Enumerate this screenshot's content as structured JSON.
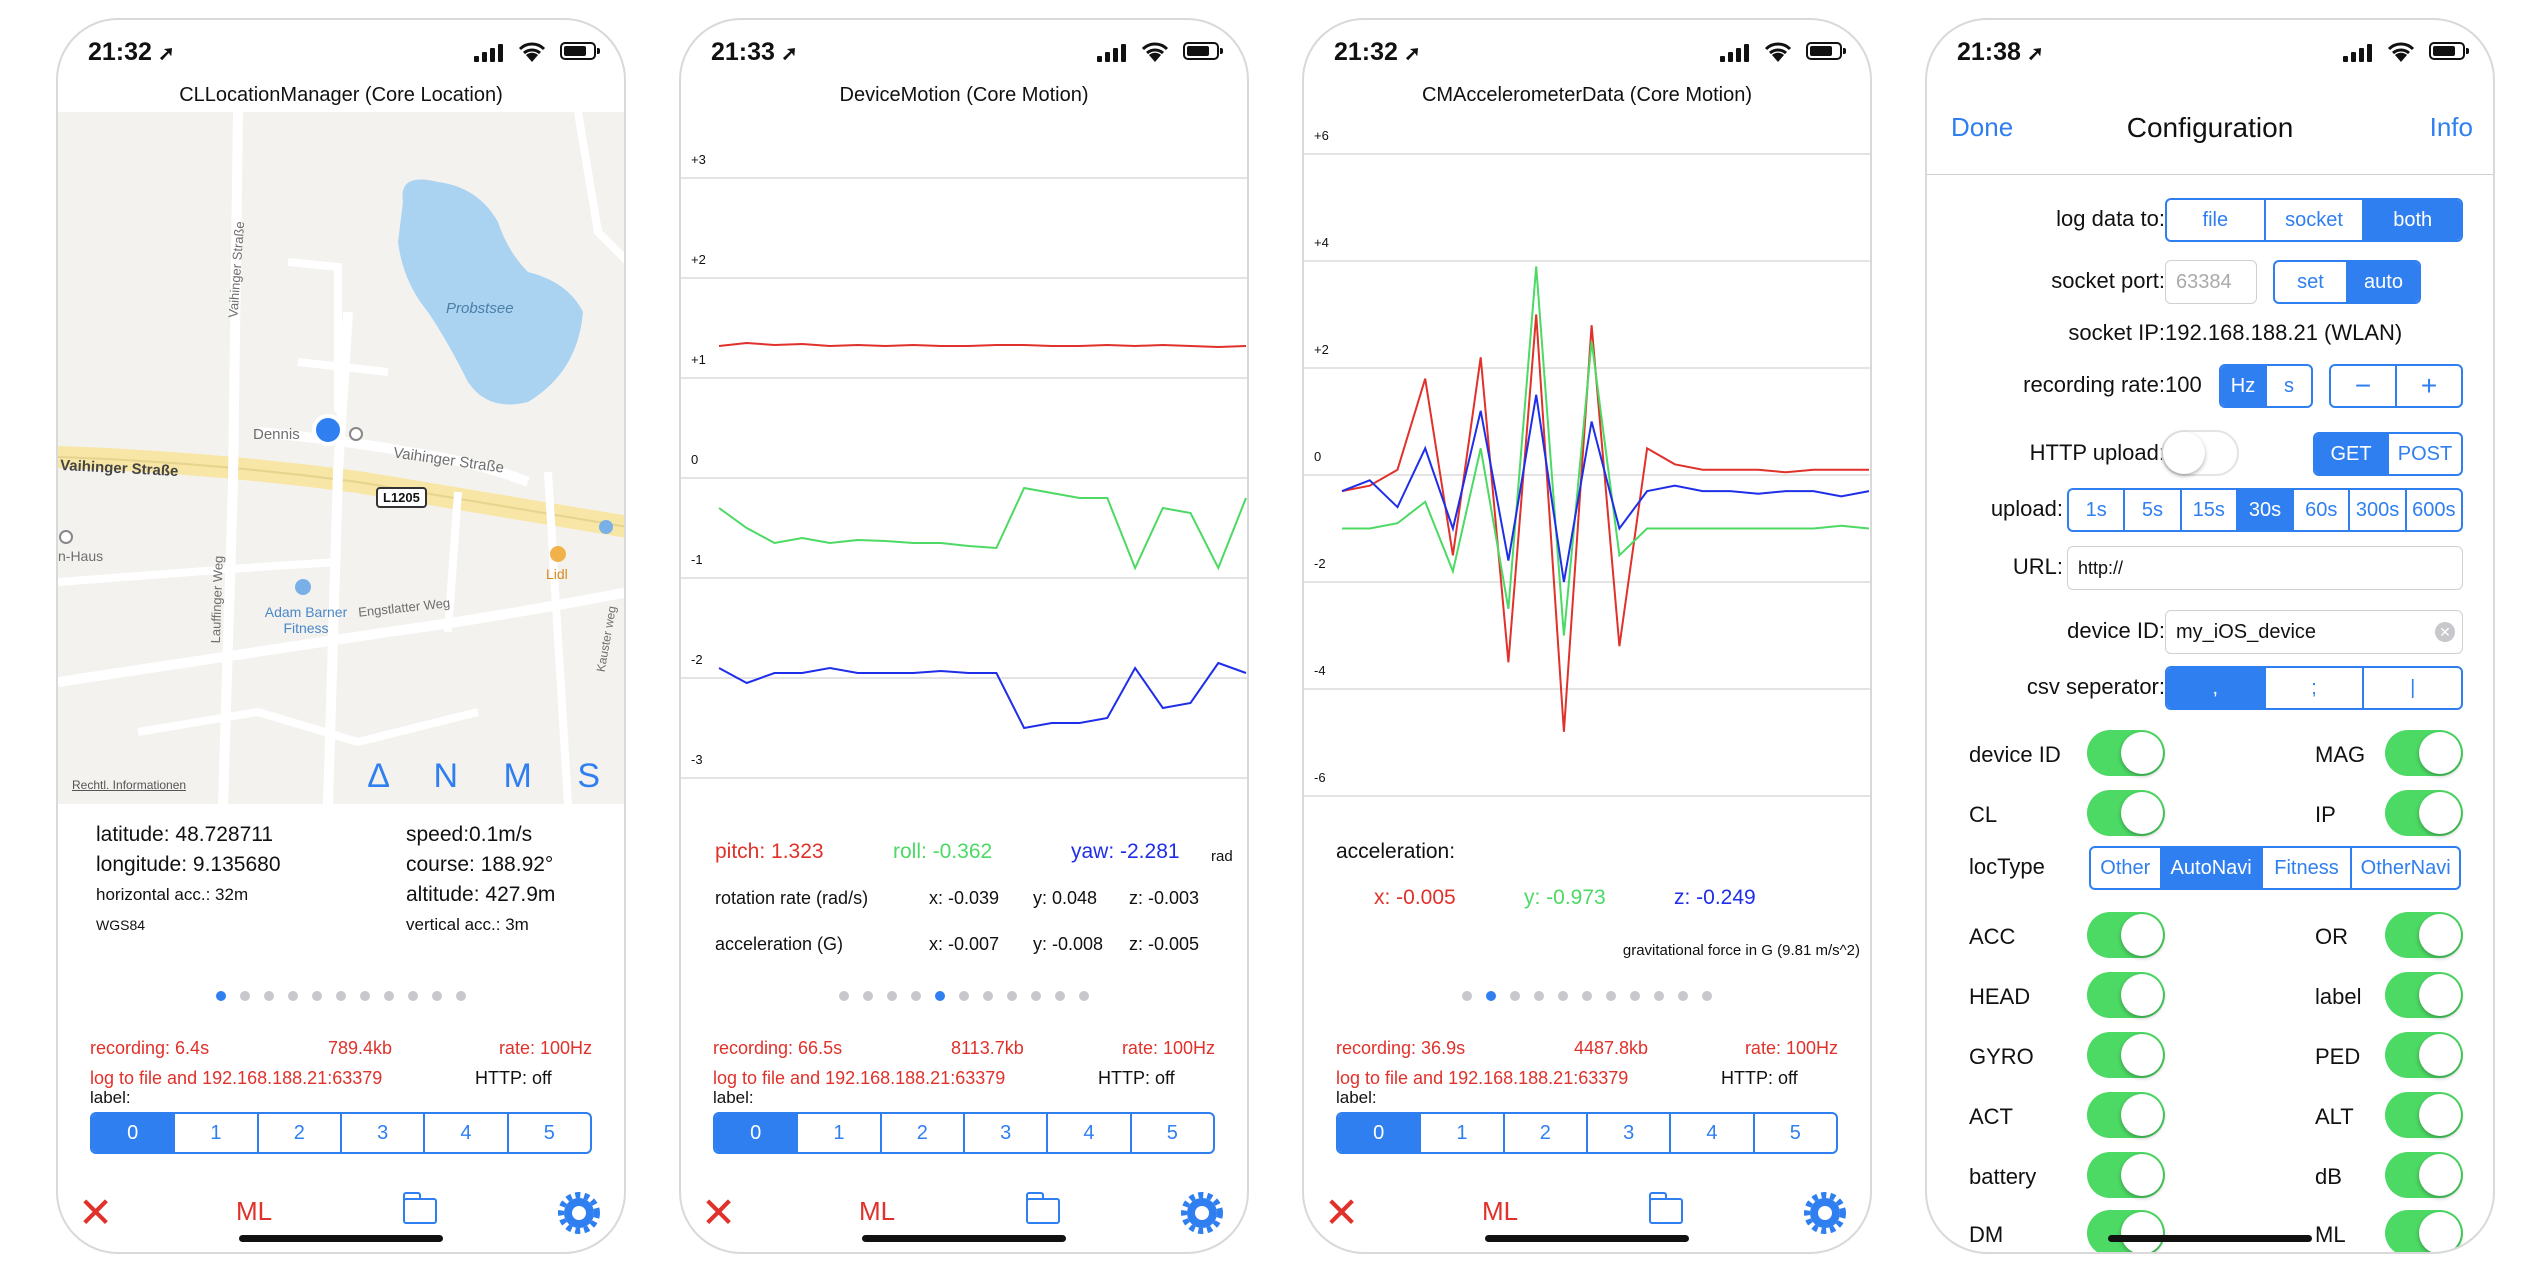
{
  "screens": [
    {
      "time": "21:32",
      "title": "CLLocationManager (Core Location)",
      "map": {
        "labels": [
          "Probstsee",
          "Vaihinger Straße",
          "Vaihinger Straße",
          "Dennis",
          "L1205",
          "Lauffinger Weg",
          "Vaihinger Straße",
          "Adam Barner Fitness",
          "Engstlatter Weg",
          "Lidl",
          "n-Haus",
          "Kauster weg"
        ],
        "legal": "Rechtl. Informationen",
        "buttons": "Δ N M S"
      },
      "info": {
        "latitude": "latitude: 48.728711",
        "longitude": "longitude: 9.135680",
        "horizontal_acc": "horizontal acc.: 32m",
        "datum": "WGS84",
        "speed": "speed:0.1m/s",
        "course": "course: 188.92°",
        "altitude": "altitude: 427.9m",
        "vertical_acc": "vertical acc.: 3m"
      },
      "page_dots": 11,
      "active_dot": 0,
      "recording": "recording:  6.4s",
      "size": "789.4kb",
      "rate": "rate: 100Hz",
      "log": "log to file and 192.168.188.21:63379",
      "http": "HTTP:  off"
    },
    {
      "time": "21:33",
      "title": "DeviceMotion (Core Motion)",
      "pitch": "pitch: 1.323",
      "roll": "roll: -0.362",
      "yaw": "yaw: -2.281",
      "unit": "rad",
      "rot_label": "rotation rate (rad/s)",
      "rot": [
        "x: -0.039",
        "y: 0.048",
        "z: -0.003"
      ],
      "acc_label": "acceleration (G)",
      "acc": [
        "x: -0.007",
        "y: -0.008",
        "z: -0.005"
      ],
      "page_dots": 11,
      "active_dot": 4,
      "recording": "recording:  66.5s",
      "size": "8113.7kb",
      "rate": "rate: 100Hz",
      "log": "log to file and 192.168.188.21:63379",
      "http": "HTTP:  off"
    },
    {
      "time": "21:32",
      "title": "CMAccelerometerData (Core Motion)",
      "acc_label": "acceleration:",
      "x": "x: -0.005",
      "y": "y: -0.973",
      "z": "z: -0.249",
      "grav": "gravitational force in G (9.81 m/s^2)",
      "page_dots": 11,
      "active_dot": 1,
      "recording": "recording:  36.9s",
      "size": "4487.8kb",
      "rate": "rate: 100Hz",
      "log": "log to file and 192.168.188.21:63379",
      "http": "HTTP:  off"
    },
    {
      "time": "21:38",
      "done": "Done",
      "title": "Configuration",
      "info": "Info",
      "log_label": "log data to:",
      "log_opts": [
        "file",
        "socket",
        "both"
      ],
      "port_label": "socket port:",
      "port_value": "63384",
      "port_opts": [
        "set",
        "auto"
      ],
      "ip_label": "socket IP:",
      "ip_value": "192.168.188.21 (WLAN)",
      "rate_label": "recording rate:",
      "rate_value": "100",
      "rate_units": [
        "Hz",
        "s"
      ],
      "stepper": [
        "−",
        "+"
      ],
      "http_label": "HTTP upload:",
      "http_opts": [
        "GET",
        "POST"
      ],
      "upload_label": "upload:",
      "upload_opts": [
        "1s",
        "5s",
        "15s",
        "30s",
        "60s",
        "300s",
        "600s"
      ],
      "url_label": "URL:",
      "url_value": "http://",
      "device_label": "device ID:",
      "device_value": "my_iOS_device",
      "csv_label": "csv seperator:",
      "csv_opts": [
        ",",
        ";",
        "|"
      ],
      "loctype_label": "locType",
      "loctype_opts": [
        "Other",
        "AutoNavi",
        "Fitness",
        "OtherNavi"
      ],
      "toggles_left": [
        "device ID",
        "CL",
        "ACC",
        "HEAD",
        "GYRO",
        "ACT",
        "battery",
        "DM"
      ],
      "toggles_right": [
        "MAG",
        "IP",
        "OR",
        "label",
        "PED",
        "ALT",
        "dB",
        "ML"
      ]
    }
  ],
  "labels_row": {
    "label": "label:",
    "options": [
      "0",
      "1",
      "2",
      "3",
      "4",
      "5"
    ]
  },
  "tabbar": {
    "close": "✕",
    "ml": "ML"
  },
  "chart_data": [
    {
      "type": "line",
      "title": "DeviceMotion (Core Motion)",
      "ylim": [
        -3,
        3
      ],
      "yticks": [
        "+3",
        "+2",
        "+1",
        "0",
        "-1",
        "-2",
        "-3"
      ],
      "series": [
        {
          "color": "#e0312a",
          "values": [
            1.32,
            1.35,
            1.33,
            1.34,
            1.32,
            1.33,
            1.32,
            1.33,
            1.32,
            1.32,
            1.33,
            1.33,
            1.32,
            1.32,
            1.33,
            1.32,
            1.33,
            1.32,
            1.31,
            1.32
          ]
        },
        {
          "color": "#4cd964",
          "values": [
            -0.3,
            -0.5,
            -0.65,
            -0.6,
            -0.65,
            -0.62,
            -0.63,
            -0.65,
            -0.65,
            -0.68,
            -0.7,
            -0.1,
            -0.15,
            -0.2,
            -0.2,
            -0.9,
            -0.3,
            -0.35,
            -0.9,
            -0.2
          ]
        },
        {
          "color": "#1f2ee8",
          "values": [
            -1.9,
            -2.05,
            -1.95,
            -1.95,
            -1.9,
            -1.95,
            -1.95,
            -1.95,
            -1.93,
            -1.95,
            -1.95,
            -2.5,
            -2.45,
            -2.45,
            -2.4,
            -1.9,
            -2.3,
            -2.25,
            -1.85,
            -1.95
          ]
        }
      ]
    },
    {
      "type": "line",
      "title": "CMAccelerometerData (Core Motion)",
      "ylim": [
        -6,
        6
      ],
      "yticks": [
        "+6",
        "+4",
        "+2",
        "0",
        "-2",
        "-4",
        "-6"
      ],
      "series": [
        {
          "color": "#e0312a",
          "values": [
            -0.3,
            -0.2,
            0.1,
            1.8,
            -1.5,
            2.2,
            -3.5,
            3.0,
            -4.8,
            2.8,
            -3.2,
            0.5,
            0.2,
            0.1,
            0.1,
            0.1,
            0.05,
            0.1,
            0.1,
            0.1
          ]
        },
        {
          "color": "#4cd964",
          "values": [
            -1.0,
            -1.0,
            -0.9,
            -0.5,
            -1.8,
            0.5,
            -2.5,
            3.9,
            -3.0,
            2.5,
            -1.5,
            -1.0,
            -1.0,
            -1.0,
            -1.0,
            -1.0,
            -1.0,
            -1.0,
            -0.95,
            -1.0
          ]
        },
        {
          "color": "#1f2ee8",
          "values": [
            -0.3,
            -0.1,
            -0.6,
            0.5,
            -1.0,
            1.2,
            -1.6,
            1.5,
            -2.0,
            1.0,
            -1.0,
            -0.3,
            -0.2,
            -0.3,
            -0.3,
            -0.35,
            -0.3,
            -0.3,
            -0.4,
            -0.3
          ]
        }
      ]
    }
  ]
}
